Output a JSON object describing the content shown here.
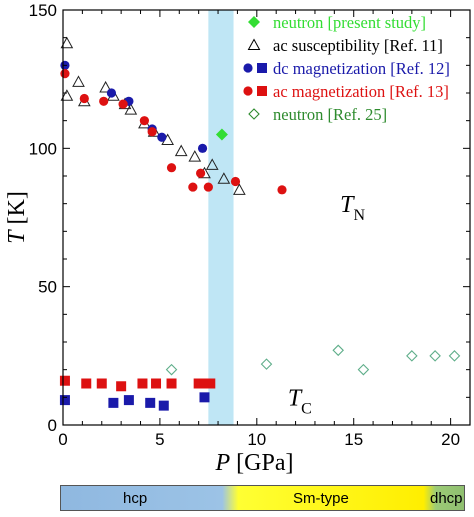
{
  "chart_data": {
    "type": "scatter",
    "xlabel_var": "P",
    "xlabel_unit": "[GPa]",
    "ylabel_var": "T",
    "ylabel_unit": "[K]",
    "xlim": [
      0,
      21
    ],
    "ylim": [
      0,
      150
    ],
    "x_ticks": [
      0,
      5,
      10,
      15,
      20
    ],
    "y_ticks": [
      0,
      50,
      100,
      150
    ],
    "x_tick_labels": [
      "0",
      "5",
      "10",
      "15",
      "20"
    ],
    "y_tick_labels": [
      "0",
      "50",
      "100",
      "150"
    ],
    "highlight_band": {
      "x_from": 7.5,
      "x_to": 8.8,
      "color": "#bfe6f5"
    },
    "annotations": [
      {
        "var": "T",
        "sub": "N",
        "x": 14.3,
        "y": 77
      },
      {
        "var": "T",
        "sub": "C",
        "x": 11.6,
        "y": 7
      }
    ],
    "legend": {
      "position": "top-right",
      "entries": [
        {
          "label": "neutron [present study]",
          "color": "#33dd33",
          "markers": [
            "filled-diamond"
          ]
        },
        {
          "label": "ac susceptibility [Ref. 11]",
          "color": "#000000",
          "markers": [
            "open-triangle"
          ]
        },
        {
          "label": "dc magnetization [Ref. 12]",
          "color": "#1a1aaa",
          "markers": [
            "filled-circle",
            "filled-square"
          ]
        },
        {
          "label": "ac magnetization [Ref. 13]",
          "color": "#dd1111",
          "markers": [
            "filled-circle",
            "filled-square"
          ]
        },
        {
          "label": "neutron [Ref. 25]",
          "color": "#2e8b2e",
          "markers": [
            "open-diamond"
          ]
        }
      ]
    },
    "series": [
      {
        "name": "neutron [present study]",
        "marker": "filled-diamond",
        "color": "#33dd33",
        "points": [
          [
            8.2,
            105
          ]
        ]
      },
      {
        "name": "ac susceptibility [Ref. 11]",
        "marker": "open-triangle",
        "color": "#222222",
        "points": [
          [
            0.2,
            138
          ],
          [
            0.2,
            119
          ],
          [
            0.8,
            124
          ],
          [
            1.1,
            117
          ],
          [
            2.2,
            122
          ],
          [
            2.6,
            119
          ],
          [
            3.2,
            116
          ],
          [
            3.5,
            114
          ],
          [
            4.2,
            109
          ],
          [
            4.7,
            106
          ],
          [
            5.4,
            103
          ],
          [
            6.1,
            99
          ],
          [
            6.8,
            97
          ],
          [
            7.3,
            91
          ],
          [
            7.7,
            94
          ],
          [
            8.3,
            89
          ],
          [
            9.1,
            85
          ]
        ]
      },
      {
        "name": "dc magnetization [Ref. 12] (circles)",
        "marker": "filled-circle",
        "color": "#1a1aaa",
        "points": [
          [
            0.1,
            130
          ],
          [
            2.5,
            120
          ],
          [
            3.4,
            117
          ],
          [
            4.6,
            107
          ],
          [
            5.1,
            104
          ],
          [
            7.2,
            100
          ]
        ]
      },
      {
        "name": "dc magnetization [Ref. 12] (squares)",
        "marker": "filled-square",
        "color": "#1a1aaa",
        "points": [
          [
            0.1,
            9
          ],
          [
            2.6,
            8
          ],
          [
            3.4,
            9
          ],
          [
            4.5,
            8
          ],
          [
            5.2,
            7
          ],
          [
            7.3,
            10
          ]
        ]
      },
      {
        "name": "ac magnetization [Ref. 13] (circles)",
        "marker": "filled-circle",
        "color": "#dd1111",
        "points": [
          [
            0.1,
            127
          ],
          [
            1.1,
            118
          ],
          [
            2.1,
            117
          ],
          [
            3.1,
            116
          ],
          [
            4.2,
            110
          ],
          [
            4.6,
            106
          ],
          [
            5.6,
            93
          ],
          [
            6.7,
            86
          ],
          [
            7.1,
            91
          ],
          [
            7.5,
            86
          ],
          [
            8.9,
            88
          ],
          [
            11.3,
            85
          ]
        ]
      },
      {
        "name": "ac magnetization [Ref. 13] (squares)",
        "marker": "filled-square",
        "color": "#dd1111",
        "points": [
          [
            0.1,
            16
          ],
          [
            1.2,
            15
          ],
          [
            2.0,
            15
          ],
          [
            3.0,
            14
          ],
          [
            4.1,
            15
          ],
          [
            4.8,
            15
          ],
          [
            5.6,
            15
          ],
          [
            7.0,
            15
          ],
          [
            7.3,
            15
          ],
          [
            7.6,
            15
          ]
        ]
      },
      {
        "name": "neutron [Ref. 25]",
        "marker": "open-diamond",
        "color": "#5fae8a",
        "points": [
          [
            5.6,
            20
          ],
          [
            10.5,
            22
          ],
          [
            14.2,
            27
          ],
          [
            15.5,
            20
          ],
          [
            18.0,
            25
          ],
          [
            19.2,
            25
          ],
          [
            20.2,
            25
          ]
        ]
      }
    ]
  },
  "phase_bar": {
    "hcp": "hcp",
    "sm_type": "Sm-type",
    "dhcp": "dhcp"
  }
}
